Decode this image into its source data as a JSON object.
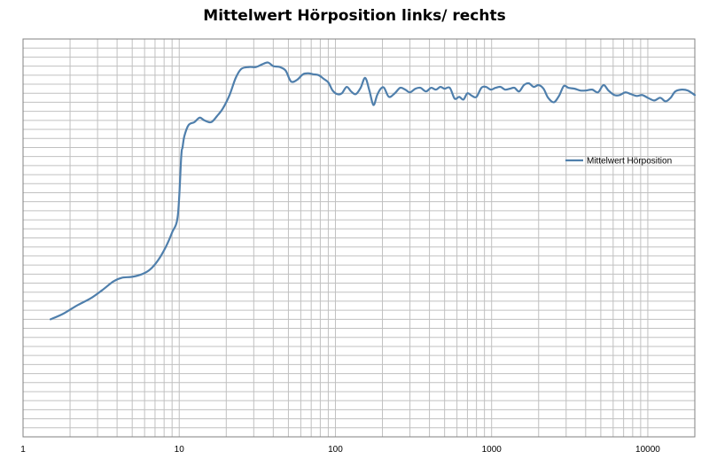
{
  "chart_data": {
    "type": "line",
    "title": "Mittelwert Hörposition links/ rechts",
    "xlabel": "",
    "ylabel": "",
    "x_scale": "log",
    "xlim": [
      1,
      20000
    ],
    "ylim": [
      0,
      44
    ],
    "x_ticks": [
      {
        "value": 1,
        "label": "1"
      },
      {
        "value": 10,
        "label": "10"
      },
      {
        "value": 100,
        "label": "100"
      },
      {
        "value": 1000,
        "label": "1000"
      },
      {
        "value": 10000,
        "label": "10000"
      }
    ],
    "y_tick_labels": "none",
    "grid": true,
    "legend_position": "right",
    "line_color": "#4f7fac",
    "grid_color": "#c0c0c0",
    "series": [
      {
        "name": "Mittelwert Hörposition",
        "x": [
          1.5,
          1.8,
          2.2,
          2.7,
          3.2,
          3.8,
          4.3,
          5,
          5.8,
          6.5,
          7.3,
          8.2,
          9,
          9.8,
          10.3,
          10.5,
          10.8,
          11.5,
          12.5,
          13.5,
          14.5,
          16,
          17.5,
          19,
          21,
          23,
          25,
          28,
          31,
          34,
          37,
          40,
          44,
          48,
          52,
          57,
          62,
          67,
          72,
          78,
          84,
          90,
          96,
          103,
          110,
          118,
          126,
          135,
          145,
          155,
          165,
          175,
          185,
          195,
          205,
          220,
          240,
          260,
          280,
          300,
          325,
          350,
          380,
          410,
          440,
          470,
          500,
          540,
          580,
          620,
          660,
          700,
          750,
          800,
          860,
          920,
          990,
          1060,
          1140,
          1220,
          1310,
          1400,
          1500,
          1610,
          1730,
          1860,
          2000,
          2150,
          2300,
          2500,
          2700,
          2900,
          3100,
          3400,
          3700,
          4000,
          4400,
          4800,
          5200,
          5600,
          6100,
          6600,
          7200,
          7800,
          8500,
          9200,
          10000,
          11000,
          12000,
          13000,
          14000,
          15000,
          16500,
          18000,
          20000
        ],
        "values": [
          13,
          13.6,
          14.5,
          15.3,
          16.2,
          17.2,
          17.6,
          17.7,
          18,
          18.5,
          19.5,
          21,
          22.6,
          24.5,
          31,
          32,
          33.3,
          34.5,
          34.8,
          35.3,
          35,
          34.8,
          35.5,
          36.3,
          37.8,
          39.7,
          40.7,
          40.9,
          40.9,
          41.2,
          41.4,
          41.0,
          40.9,
          40.5,
          39.3,
          39.5,
          40.1,
          40.2,
          40.1,
          40.0,
          39.6,
          39.2,
          38.3,
          37.9,
          38.0,
          38.7,
          38.2,
          37.9,
          38.6,
          39.7,
          38.3,
          36.7,
          37.8,
          38.5,
          38.6,
          37.6,
          38.0,
          38.6,
          38.4,
          38.1,
          38.5,
          38.6,
          38.2,
          38.6,
          38.4,
          38.7,
          38.5,
          38.6,
          37.4,
          37.6,
          37.3,
          38.0,
          37.7,
          37.6,
          38.6,
          38.7,
          38.4,
          38.6,
          38.7,
          38.4,
          38.5,
          38.6,
          38.2,
          38.9,
          39.1,
          38.7,
          38.9,
          38.5,
          37.5,
          37.0,
          37.7,
          38.8,
          38.6,
          38.5,
          38.3,
          38.3,
          38.4,
          38.1,
          38.9,
          38.3,
          37.8,
          37.8,
          38.1,
          37.9,
          37.7,
          37.8,
          37.5,
          37.2,
          37.5,
          37.1,
          37.5,
          38.2,
          38.4,
          38.3,
          37.8
        ]
      }
    ]
  }
}
